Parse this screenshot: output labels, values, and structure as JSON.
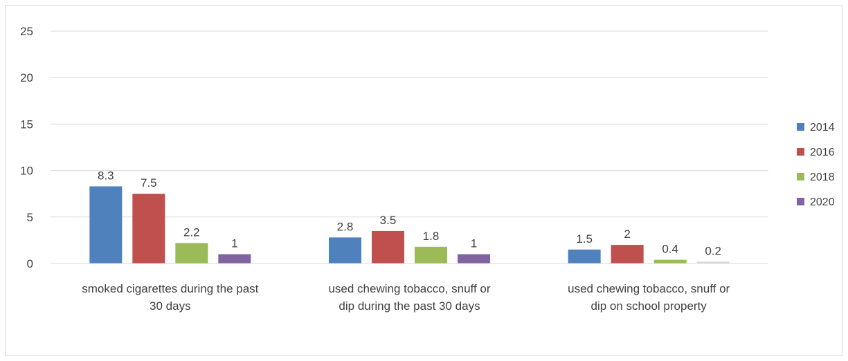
{
  "chart_data": {
    "type": "bar",
    "title": "",
    "xlabel": "",
    "ylabel": "",
    "ylim": [
      0,
      25
    ],
    "yticks": [
      0,
      5,
      10,
      15,
      20,
      25
    ],
    "grid": true,
    "legend_position": "right",
    "categories": [
      [
        "smoked cigarettes during the past",
        "30 days"
      ],
      [
        "used chewing tobacco, snuff or",
        "dip during the past 30 days"
      ],
      [
        "used chewing tobacco, snuff or",
        "dip on school property"
      ]
    ],
    "series": [
      {
        "name": "2014",
        "color": "#4f81bd",
        "values": [
          8.3,
          2.8,
          1.5
        ],
        "labels": [
          "8.3",
          "2.8",
          "1.5"
        ]
      },
      {
        "name": "2016",
        "color": "#c0504d",
        "values": [
          7.5,
          3.5,
          2
        ],
        "labels": [
          "7.5",
          "3.5",
          "2"
        ]
      },
      {
        "name": "2018",
        "color": "#9bbb59",
        "values": [
          2.2,
          1.8,
          0.4
        ],
        "labels": [
          "2.2",
          "1.8",
          "0.4"
        ]
      },
      {
        "name": "2020",
        "color": "#8064a2",
        "values": [
          1,
          1,
          0.2
        ],
        "labels": [
          "1",
          "1",
          "0.2"
        ]
      }
    ],
    "last_point_color_2020_cat3": "#d9d9d9"
  }
}
